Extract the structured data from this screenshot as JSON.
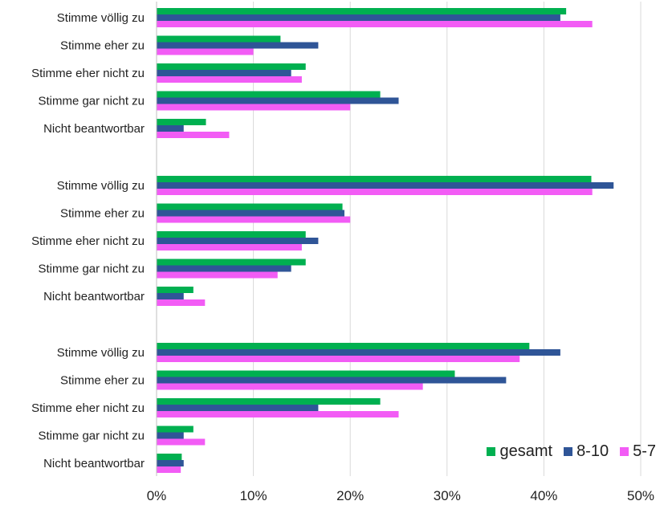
{
  "chart_data": {
    "type": "bar",
    "orientation": "horizontal",
    "xlim": [
      0,
      50
    ],
    "x_ticks": [
      "0%",
      "10%",
      "20%",
      "30%",
      "40%",
      "50%"
    ],
    "grid": "vertical",
    "legend_position": "bottom-right",
    "groups": [
      {
        "categories": [
          "Stimme völlig zu",
          "Stimme eher zu",
          "Stimme eher nicht zu",
          "Stimme gar nicht zu",
          "Nicht beantwortbar"
        ],
        "series": [
          {
            "name": "gesamt",
            "color": "#00B050",
            "values": [
              42.3,
              12.8,
              15.4,
              23.1,
              5.1
            ]
          },
          {
            "name": "8-10",
            "color": "#2F5597",
            "values": [
              41.7,
              16.7,
              13.9,
              25.0,
              2.8
            ]
          },
          {
            "name": "5-7",
            "color": "#F25CF5",
            "values": [
              45.0,
              10.0,
              15.0,
              20.0,
              7.5
            ]
          }
        ]
      },
      {
        "categories": [
          "Stimme völlig zu",
          "Stimme eher zu",
          "Stimme eher nicht zu",
          "Stimme gar nicht zu",
          "Nicht beantwortbar"
        ],
        "series": [
          {
            "name": "gesamt",
            "color": "#00B050",
            "values": [
              44.9,
              19.2,
              15.4,
              15.4,
              3.8
            ]
          },
          {
            "name": "8-10",
            "color": "#2F5597",
            "values": [
              47.2,
              19.4,
              16.7,
              13.9,
              2.8
            ]
          },
          {
            "name": "5-7",
            "color": "#F25CF5",
            "values": [
              45.0,
              20.0,
              15.0,
              12.5,
              5.0
            ]
          }
        ]
      },
      {
        "categories": [
          "Stimme völlig zu",
          "Stimme eher zu",
          "Stimme eher nicht zu",
          "Stimme gar nicht zu",
          "Nicht beantwortbar"
        ],
        "series": [
          {
            "name": "gesamt",
            "color": "#00B050",
            "values": [
              38.5,
              30.8,
              23.1,
              3.8,
              2.6
            ]
          },
          {
            "name": "8-10",
            "color": "#2F5597",
            "values": [
              41.7,
              36.1,
              16.7,
              2.8,
              2.8
            ]
          },
          {
            "name": "5-7",
            "color": "#F25CF5",
            "values": [
              37.5,
              27.5,
              25.0,
              5.0,
              2.5
            ]
          }
        ]
      }
    ]
  },
  "legend": {
    "items": [
      {
        "label": "gesamt",
        "color": "#00B050"
      },
      {
        "label": "8-10",
        "color": "#2F5597"
      },
      {
        "label": "5-7",
        "color": "#F25CF5"
      }
    ]
  }
}
